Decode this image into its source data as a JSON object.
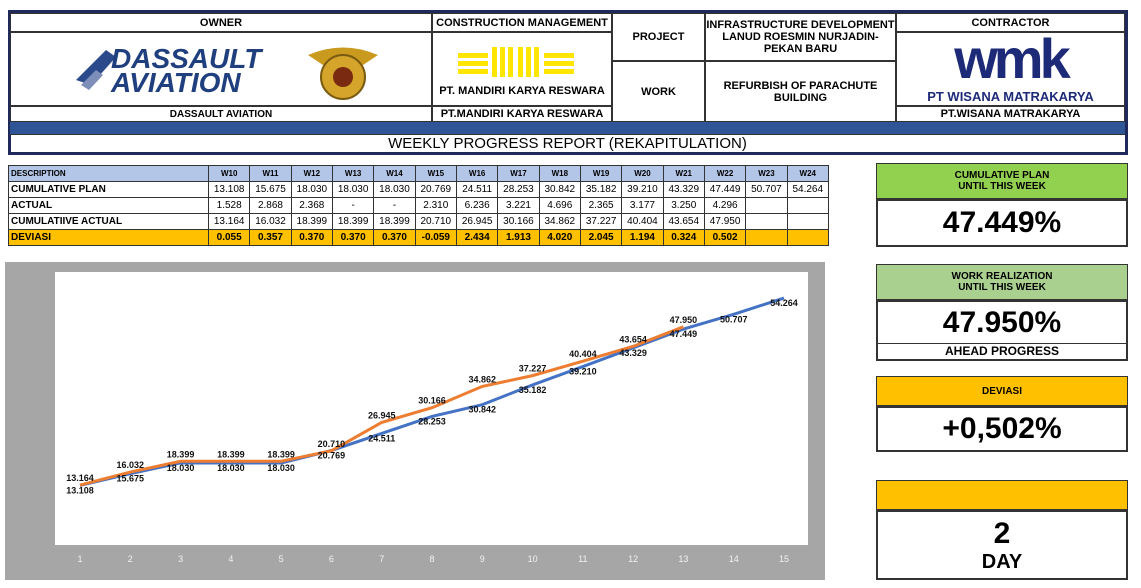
{
  "header": {
    "owner": {
      "label": "OWNER",
      "logo_lines": [
        "DASSAULT",
        "AVIATION"
      ],
      "name": "DASSAULT AVIATION"
    },
    "construction_management": {
      "label": "CONSTRUCTION MANAGEMENT",
      "logo_caption": "PT. MANDIRI KARYA RESWARA",
      "name": "PT.MANDIRI KARYA RESWARA"
    },
    "project": {
      "label": "PROJECT",
      "lines": [
        "INFRASTRUCTURE DEVELOPMENT",
        "LANUD ROESMIN NURJADIN-",
        "PEKAN BARU"
      ]
    },
    "work": {
      "label": "WORK",
      "lines": [
        "REFURBISH OF PARACHUTE",
        "BUILDING"
      ]
    },
    "contractor": {
      "label": "CONTRACTOR",
      "logo_text": "wmk",
      "logo_caption": "PT WISANA MATRAKARYA",
      "name": "PT.WISANA MATRAKARYA"
    },
    "title": "WEEKLY PROGRESS REPORT (REKAPITULATION)"
  },
  "table": {
    "columns": [
      "DESCRIPTION",
      "W10",
      "W11",
      "W12",
      "W13",
      "W14",
      "W15",
      "W16",
      "W17",
      "W18",
      "W19",
      "W20",
      "W21",
      "W22",
      "W23",
      "W24"
    ],
    "rows": [
      [
        "CUMULATIVE PLAN",
        "13.108",
        "15.675",
        "18.030",
        "18.030",
        "18.030",
        "20.769",
        "24.511",
        "28.253",
        "30.842",
        "35.182",
        "39.210",
        "43.329",
        "47.449",
        "50.707",
        "54.264"
      ],
      [
        "ACTUAL",
        "1.528",
        "2.868",
        "2.368",
        "-",
        "-",
        "2.310",
        "6.236",
        "3.221",
        "4.696",
        "2.365",
        "3.177",
        "3.250",
        "4.296"
      ],
      [
        "CUMULATIIVE ACTUAL",
        "13.164",
        "16.032",
        "18.399",
        "18.399",
        "18.399",
        "20.710",
        "26.945",
        "30.166",
        "34.862",
        "37.227",
        "40.404",
        "43.654",
        "47.950"
      ],
      [
        "DEVIASI",
        "0.055",
        "0.357",
        "0.370",
        "0.370",
        "0.370",
        "-0.059",
        "2.434",
        "1.913",
        "4.020",
        "2.045",
        "1.194",
        "0.324",
        "0.502"
      ]
    ]
  },
  "chart_data": {
    "type": "line",
    "categories": [
      "1",
      "2",
      "3",
      "4",
      "5",
      "6",
      "7",
      "8",
      "9",
      "10",
      "11",
      "12",
      "13",
      "14",
      "15"
    ],
    "ylim": [
      0,
      60
    ],
    "series": [
      {
        "name": "CUMULATIVE PLAN",
        "color": "#4472c4",
        "values": [
          13.108,
          15.675,
          18.03,
          18.03,
          18.03,
          20.769,
          24.511,
          28.253,
          30.842,
          35.182,
          39.21,
          43.329,
          47.449,
          50.707,
          54.264
        ],
        "value_labels": [
          "13.108",
          "15.675",
          "18.030",
          "18.030",
          "18.030",
          "20.769",
          "24.511",
          "28.253",
          "30.842",
          "35.182",
          "39.210",
          "43.329",
          "47.449",
          "50.707",
          "54.264"
        ]
      },
      {
        "name": "CUMULATIIVE ACTUAL",
        "color": "#ed7d31",
        "values": [
          13.164,
          16.032,
          18.399,
          18.399,
          18.399,
          20.71,
          26.945,
          30.166,
          34.862,
          37.227,
          40.404,
          43.654,
          47.95,
          null,
          null
        ],
        "value_labels": [
          "13.164",
          "16.032",
          "18.399",
          "18.399",
          "18.399",
          "20.710",
          "26.945",
          "30.166",
          "34.862",
          "37.227",
          "40.404",
          "43.654",
          "47.950",
          null,
          null
        ]
      }
    ]
  },
  "panels": [
    {
      "header": [
        "CUMULATIVE PLAN",
        "UNTIL THIS WEEK"
      ],
      "value": "47.449%"
    },
    {
      "header": [
        "WORK REALIZATION",
        "UNTIL THIS WEEK"
      ],
      "value": "47.950%",
      "footer": "AHEAD PROGRESS"
    },
    {
      "header": [
        "DEVIASI"
      ],
      "value": "+0,502%"
    },
    {
      "value": "2",
      "unit": "DAY"
    }
  ]
}
